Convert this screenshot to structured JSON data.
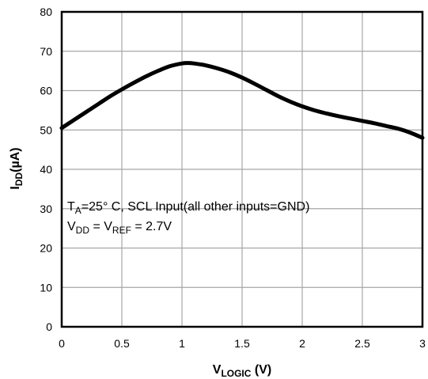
{
  "chart_data": {
    "type": "line",
    "xlabel_main": "V",
    "xlabel_sub": "LOGIC",
    "xlabel_tail": " (V)",
    "ylabel_main": "I",
    "ylabel_sub": "DD",
    "ylabel_tail": "(µA)",
    "xlim": [
      0,
      3
    ],
    "ylim": [
      0,
      80
    ],
    "grid": true,
    "x_ticks": [
      "0",
      "0.5",
      "1",
      "1.5",
      "2",
      "2.5",
      "3"
    ],
    "y_ticks": [
      "0",
      "10",
      "20",
      "30",
      "40",
      "50",
      "60",
      "70",
      "80"
    ],
    "annotation": {
      "line1": {
        "a": "T",
        "a_sub": "A",
        "b": "=25°  C, SCL Input(all other inputs=GND)"
      },
      "line2": {
        "a": "V",
        "a_sub": "DD",
        "b": " = V",
        "b_sub": "REF",
        "c": " = 2.7V"
      }
    },
    "series": [
      {
        "color": "#000000",
        "x": [
          0,
          0.1,
          0.2,
          0.3,
          0.4,
          0.5,
          0.6,
          0.7,
          0.8,
          0.9,
          1.0,
          1.05,
          1.1,
          1.2,
          1.3,
          1.4,
          1.5,
          1.6,
          1.7,
          1.8,
          1.9,
          2.0,
          2.1,
          2.2,
          2.3,
          2.4,
          2.5,
          2.6,
          2.7,
          2.8,
          2.9,
          3.0
        ],
        "y": [
          50.5,
          52.5,
          54.5,
          56.5,
          58.5,
          60.3,
          62.0,
          63.6,
          65.0,
          66.2,
          66.9,
          67.0,
          66.9,
          66.4,
          65.6,
          64.6,
          63.3,
          61.8,
          60.2,
          58.6,
          57.2,
          56.0,
          55.0,
          54.2,
          53.5,
          52.9,
          52.3,
          51.7,
          51.0,
          50.3,
          49.3,
          48.0
        ]
      }
    ]
  }
}
